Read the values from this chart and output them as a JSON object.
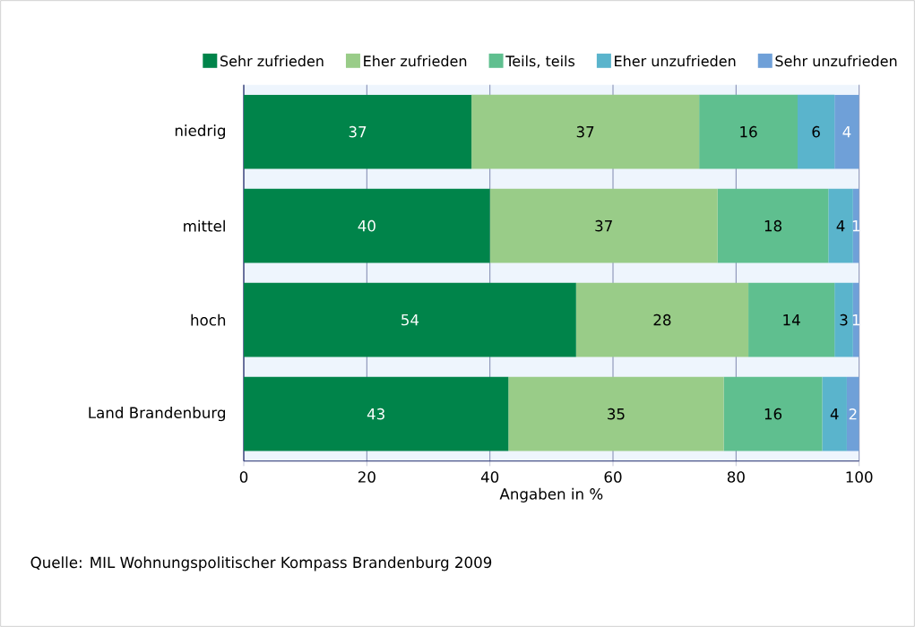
{
  "chart_data": {
    "type": "bar",
    "orientation": "horizontal",
    "stacked": true,
    "categories": [
      "niedrig",
      "mittel",
      "hoch",
      "Land Brandenburg"
    ],
    "series": [
      {
        "name": "Sehr zufrieden",
        "color": "#00844a",
        "values": [
          37,
          40,
          54,
          43
        ]
      },
      {
        "name": "Eher zufrieden",
        "color": "#99cc88",
        "values": [
          37,
          37,
          28,
          35
        ]
      },
      {
        "name": "Teils, teils",
        "color": "#5fbf8f",
        "values": [
          16,
          18,
          14,
          16
        ]
      },
      {
        "name": "Eher unzufrieden",
        "color": "#5ab4cc",
        "values": [
          6,
          4,
          3,
          4
        ]
      },
      {
        "name": "Sehr unzufrieden",
        "color": "#6fa0d8",
        "values": [
          4,
          1,
          1,
          2
        ]
      }
    ],
    "xlim": [
      0,
      100
    ],
    "xticks": [
      0,
      20,
      40,
      60,
      80,
      100
    ],
    "xlabel": "Angaben in %",
    "grid": "x",
    "legend": "top",
    "data_labels": true,
    "annotations": [
      "Quelle: MIL Wohnungspolitischer Kompass Brandenburg 2009"
    ]
  }
}
